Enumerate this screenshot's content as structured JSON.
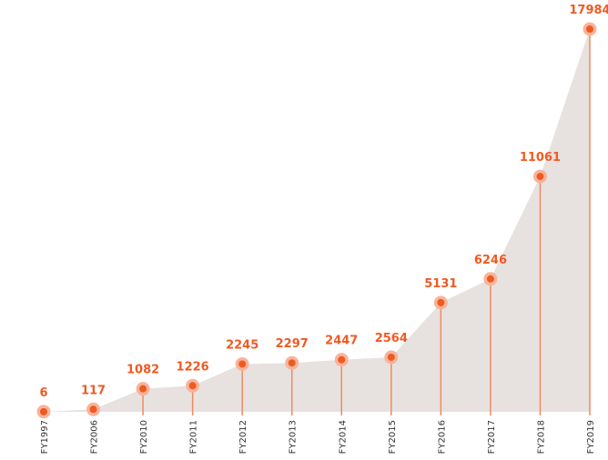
{
  "chart_data": {
    "type": "area",
    "categories": [
      "FY1997",
      "FY2006",
      "FY2010",
      "FY2011",
      "FY2012",
      "FY2013",
      "FY2014",
      "FY2015",
      "FY2016",
      "FY2017",
      "FY2018",
      "FY2019"
    ],
    "values": [
      6,
      117,
      1082,
      1226,
      2245,
      2297,
      2447,
      2564,
      5131,
      6246,
      11061,
      17984
    ],
    "data_labels": [
      "6",
      "117",
      "1082",
      "1226",
      "2245",
      "2297",
      "2447",
      "2564",
      "5131",
      "6246",
      "11061",
      "17984"
    ],
    "title": "",
    "xlabel": "",
    "ylabel": "",
    "x_axis_shown": false,
    "y_axis_shown": false,
    "grid": false,
    "legend": "none",
    "colors": {
      "area_fill": "#e7e2df",
      "marker": "#f05a22",
      "marker_halo": "#f7b49b",
      "stem": "#f08a62",
      "label": "#f05a22",
      "tick_label": "#333333"
    }
  }
}
